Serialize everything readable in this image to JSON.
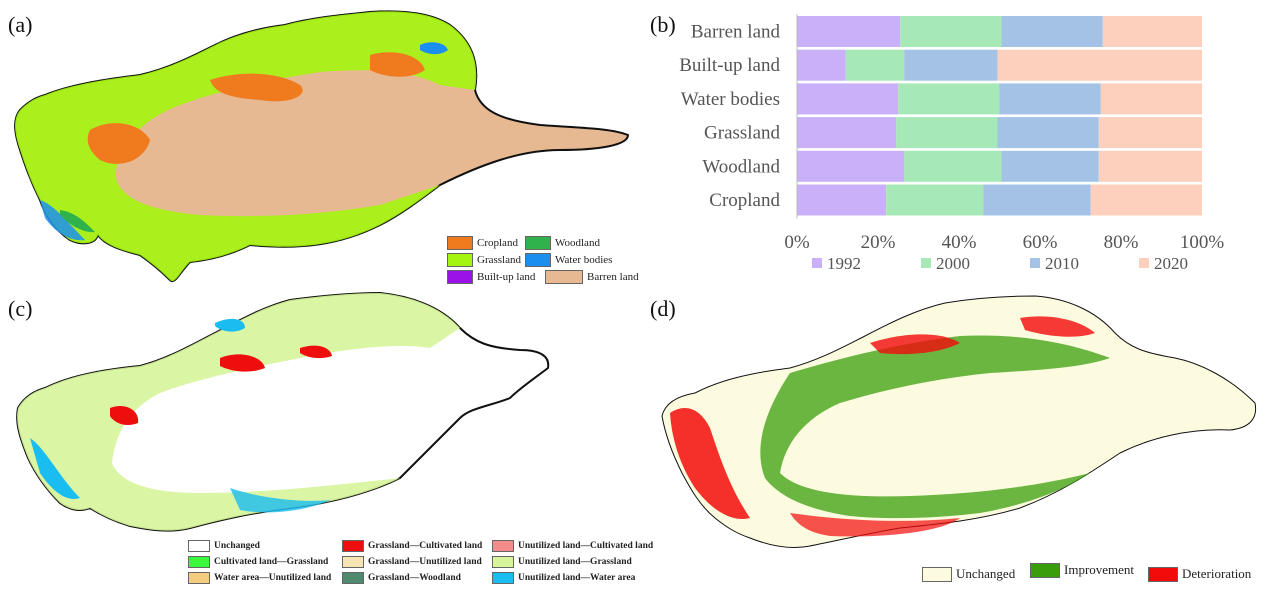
{
  "panel_labels": {
    "a": "(a)",
    "b": "(b)",
    "c": "(c)",
    "d": "(d)"
  },
  "colors": {
    "cropland": "#f07b1e",
    "woodland": "#2fb24c",
    "grassland": "#a4f50f",
    "water_bodies": "#1b8ff0",
    "builtup": "#9b12e8",
    "barren": "#e6b993",
    "y1992": "#c9b0f8",
    "y2000": "#a6e9b6",
    "y2010": "#a3c2e6",
    "y2020": "#fcd0bd",
    "unchanged_c": "#ffffff",
    "cult_grass": "#3cf83c",
    "water_unut": "#f3cc80",
    "grass_cult": "#ee0e0e",
    "grass_unut": "#f6e4b2",
    "grass_wood": "#4f8a6e",
    "unut_cult": "#f38b8b",
    "unut_grass": "#d6f59a",
    "unut_water": "#19bdf0",
    "unchanged_d": "#fdfbdf",
    "improvement": "#3a9e0c",
    "deterioration": "#f30a0a"
  },
  "legend_a": [
    {
      "label": "Cropland",
      "color_key": "cropland"
    },
    {
      "label": "Woodland",
      "color_key": "woodland"
    },
    {
      "label": "Grassland",
      "color_key": "grassland"
    },
    {
      "label": "Water bodies",
      "color_key": "water_bodies"
    },
    {
      "label": "Built-up land",
      "color_key": "builtup"
    },
    {
      "label": "Barren land",
      "color_key": "barren"
    }
  ],
  "legend_c": [
    {
      "label": "Unchanged",
      "color_key": "unchanged_c"
    },
    {
      "label": "Grassland—Cultivated land",
      "color_key": "grass_cult"
    },
    {
      "label": "Unutilized land—Cultivated land",
      "color_key": "unut_cult"
    },
    {
      "label": "Cultivated land—Grassland",
      "color_key": "cult_grass"
    },
    {
      "label": "Grassland—Unutilized land",
      "color_key": "grass_unut"
    },
    {
      "label": "Unutilized land—Grassland",
      "color_key": "unut_grass"
    },
    {
      "label": "Water area—Unutilized land",
      "color_key": "water_unut"
    },
    {
      "label": "Grassland—Woodland",
      "color_key": "grass_wood"
    },
    {
      "label": "Unutilized land—Water area",
      "color_key": "unut_water"
    }
  ],
  "legend_d": [
    {
      "label": "Unchanged",
      "color_key": "unchanged_d"
    },
    {
      "label": "Improvement",
      "color_key": "improvement"
    },
    {
      "label": "Deterioration",
      "color_key": "deterioration"
    }
  ],
  "chart_data": {
    "type": "bar",
    "orientation": "horizontal",
    "stacked": true,
    "normalized": true,
    "categories": [
      "Barren land",
      "Built-up land",
      "Water bodies",
      "Grassland",
      "Woodland",
      "Cropland"
    ],
    "series": [
      {
        "name": "1992",
        "values": [
          25.5,
          12.0,
          25.0,
          24.5,
          26.5,
          22.0
        ],
        "color_key": "y1992"
      },
      {
        "name": "2000",
        "values": [
          25.0,
          14.5,
          25.0,
          25.0,
          24.0,
          24.0
        ],
        "color_key": "y2000"
      },
      {
        "name": "2010",
        "values": [
          25.0,
          23.0,
          25.0,
          25.0,
          24.0,
          26.5
        ],
        "color_key": "y2010"
      },
      {
        "name": "2020",
        "values": [
          24.5,
          50.5,
          25.0,
          25.5,
          25.5,
          27.5
        ],
        "color_key": "y2020"
      }
    ],
    "xlim": [
      0,
      100
    ],
    "xticks": [
      "0%",
      "20%",
      "40%",
      "60%",
      "80%",
      "100%"
    ],
    "legend_position": "bottom",
    "grid": false
  }
}
